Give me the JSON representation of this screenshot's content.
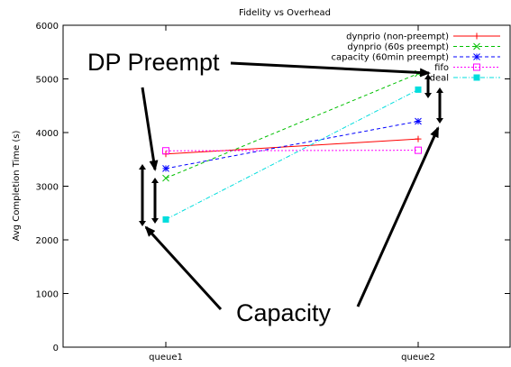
{
  "chart_data": {
    "type": "line",
    "title": "Fidelity vs Overhead",
    "xlabel": "",
    "ylabel": "Avg Completion Time (s)",
    "categories": [
      "queue1",
      "queue2"
    ],
    "ylim": [
      0,
      6000
    ],
    "yticks": [
      0,
      1000,
      2000,
      3000,
      4000,
      5000,
      6000
    ],
    "grid": false,
    "legend_position": "top-right",
    "series": [
      {
        "name": "dynprio (non-preempt)",
        "values": [
          3600,
          3880
        ],
        "color": "#ff0000",
        "dash": "solid",
        "marker": "plus"
      },
      {
        "name": "dynprio (60s preempt)",
        "values": [
          3150,
          5100
        ],
        "color": "#00c000",
        "dash": "dashed",
        "marker": "x"
      },
      {
        "name": "capacity (60min preempt)",
        "values": [
          3330,
          4210
        ],
        "color": "#0000ff",
        "dash": "dashed",
        "marker": "star"
      },
      {
        "name": "fifo",
        "values": [
          3660,
          3670
        ],
        "color": "#ff00ff",
        "dash": "dotted",
        "marker": "square"
      },
      {
        "name": "ideal",
        "values": [
          2380,
          4800
        ],
        "color": "#00dddd",
        "dash": "dashdot",
        "marker": "filled-square"
      }
    ],
    "annotations": [
      {
        "text": "DP Preempt"
      },
      {
        "text": "Capacity"
      }
    ]
  }
}
